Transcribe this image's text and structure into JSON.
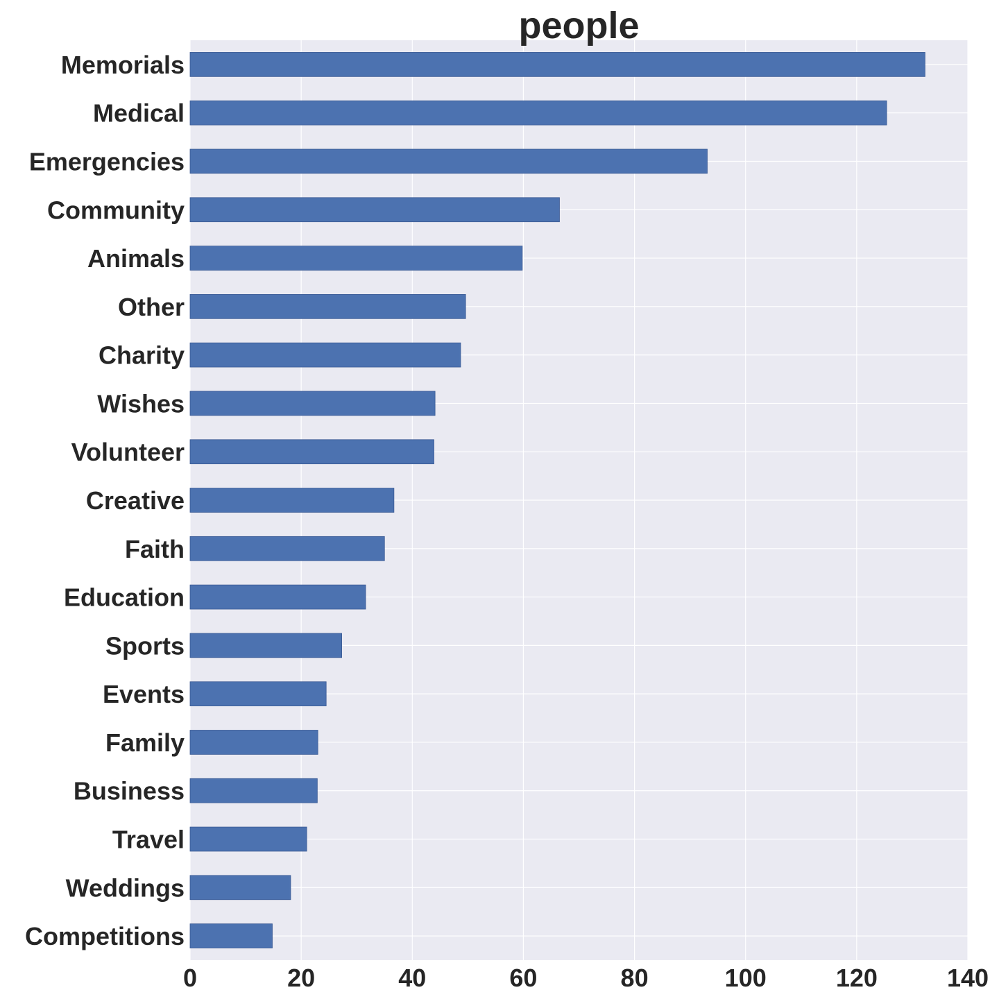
{
  "chart_data": {
    "type": "bar",
    "orientation": "horizontal",
    "title": "people",
    "xlabel": "",
    "ylabel": "",
    "xlim": [
      0,
      140
    ],
    "xticks": [
      0,
      20,
      40,
      60,
      80,
      100,
      120,
      140
    ],
    "grid": true,
    "categories": [
      "Memorials",
      "Medical",
      "Emergencies",
      "Community",
      "Animals",
      "Other",
      "Charity",
      "Wishes",
      "Volunteer",
      "Creative",
      "Faith",
      "Education",
      "Sports",
      "Events",
      "Family",
      "Business",
      "Travel",
      "Weddings",
      "Competitions"
    ],
    "values": [
      132.3,
      125.4,
      93.1,
      66.5,
      59.8,
      49.6,
      48.7,
      44.1,
      43.9,
      36.7,
      35.0,
      31.6,
      27.3,
      24.5,
      23.0,
      22.9,
      21.0,
      18.1,
      14.8
    ],
    "colors": {
      "bar": "#4C72B0",
      "background": "#EAEAF2",
      "grid": "#FFFFFF",
      "text": "#262626"
    }
  }
}
